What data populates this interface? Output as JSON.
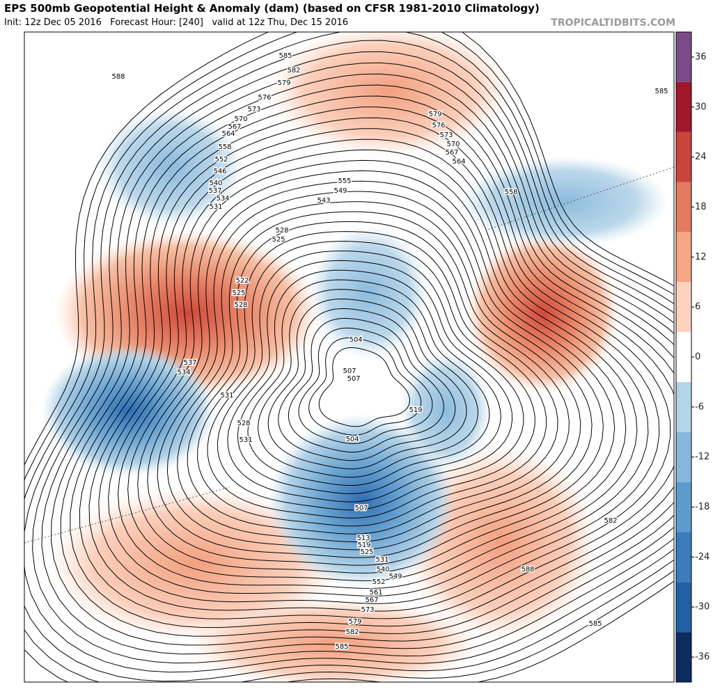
{
  "header": {
    "title": "EPS 500mb Geopotential Height & Anomaly (dam) (based on CFSR 1981-2010 Climatology)",
    "subtitle": "Init: 12z Dec 05 2016   Forecast Hour: [240]   valid at 12z Thu, Dec 15 2016",
    "brand": "TROPICALTIDBITS.COM"
  },
  "map": {
    "contour_labels": [
      588,
      585,
      582,
      579,
      576,
      573,
      570,
      567,
      564,
      558,
      552,
      546,
      540,
      537,
      534,
      531,
      528,
      525,
      555,
      549,
      543,
      522,
      525,
      528,
      537,
      534,
      531,
      528,
      531,
      504,
      507,
      507,
      504,
      519,
      585,
      579,
      576,
      573,
      570,
      567,
      564,
      558,
      582,
      588,
      585,
      507,
      513,
      519,
      525,
      531,
      540,
      549,
      552,
      561,
      567,
      573,
      579,
      582,
      585
    ]
  },
  "colorbar": {
    "lim": [
      -39,
      39
    ],
    "ticks": [
      36,
      30,
      24,
      18,
      12,
      6,
      0,
      -6,
      -12,
      -18,
      -24,
      -30,
      -36
    ],
    "bounds": [
      -39,
      -33,
      -27,
      -21,
      -15,
      -9,
      -3,
      3,
      9,
      15,
      21,
      27,
      33,
      39
    ],
    "colors": [
      "#0c2c62",
      "#1f5fa6",
      "#3a7cbc",
      "#5b9bcf",
      "#85b8dc",
      "#b3d3e8",
      "#ffffff",
      "#fcd3bf",
      "#f4a685",
      "#e47a60",
      "#c9443a",
      "#a1162b",
      "#7b4b88"
    ]
  }
}
